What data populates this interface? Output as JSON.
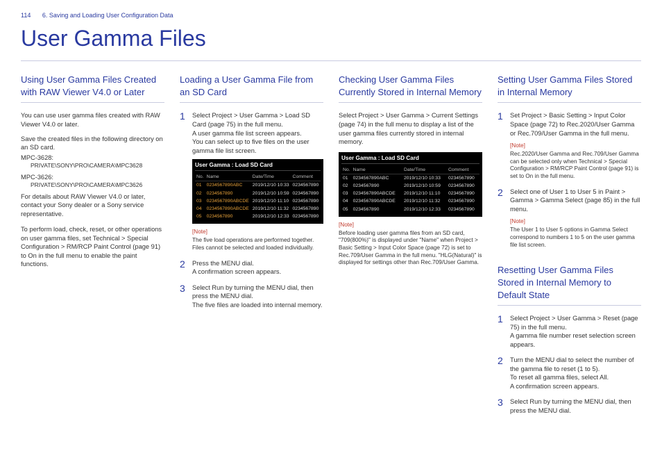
{
  "header": {
    "page_number": "114",
    "chapter": "6. Saving and Loading User Configuration Data",
    "title": "User Gamma Files"
  },
  "shot": {
    "title": "User Gamma : Load SD Card",
    "columns": [
      "No.",
      "Name",
      "Date/Time",
      "Comment"
    ],
    "rows": [
      [
        "01",
        "0234567890ABC",
        "2019/12/10 10:33",
        "0234567890"
      ],
      [
        "02",
        "0234567890",
        "2019/12/10 10:59",
        "0234567890"
      ],
      [
        "03",
        "0234567890ABCDE",
        "2019/12/10 11:10",
        "0234567890"
      ],
      [
        "04",
        "0234567890ABCDE",
        "2019/12/10 11:32",
        "0234567890"
      ],
      [
        "05",
        "0234567890",
        "2019/12/10 12:33",
        "0234567890"
      ]
    ]
  },
  "col1": {
    "h": "Using User Gamma Files Created with RAW Viewer V4.0 or Later",
    "p1": "You can use user gamma files created with RAW Viewer V4.0 or later.",
    "p2": "Save the created files in the following directory on an SD card.",
    "m1a": "MPC-3628:",
    "m1b": "PRIVATE\\SONY\\PRO\\CAMERA\\MPC3628",
    "m2a": "MPC-3626:",
    "m2b": "PRIVATE\\SONY\\PRO\\CAMERA\\MPC3626",
    "p3": "For details about RAW Viewer V4.0 or later, contact your Sony dealer or a Sony service representative.",
    "p4": "To perform load, check, reset, or other operations on user gamma files, set Technical > Special Configuration > RM/RCP Paint Control (page 91) to On in the full menu to enable the paint functions."
  },
  "col2": {
    "h": "Loading a User Gamma File from an SD Card",
    "s1a": "Select Project > User Gamma > Load SD Card (page 75) in the full menu.",
    "s1b": "A user gamma file list screen appears.",
    "s1c": "You can select up to five files on the user gamma file list screen.",
    "note_label": "[Note]",
    "note": "The five load operations are performed together. Files cannot be selected and loaded individually.",
    "s2a": "Press the MENU dial.",
    "s2b": "A confirmation screen appears.",
    "s3a": "Select Run by turning the MENU dial, then press the MENU dial.",
    "s3b": "The five files are loaded into internal memory."
  },
  "col3": {
    "h": "Checking User Gamma Files Currently Stored in Internal Memory",
    "p1": "Select Project > User Gamma > Current Settings (page 74) in the full menu to display a list of the user gamma files currently stored in internal memory.",
    "note_label": "[Note]",
    "note": "Before loading user gamma files from an SD card, \"709(800%)\" is displayed under \"Name\" when Project > Basic Setting > Input Color Space (page 72) is set to Rec.709/User Gamma in the full menu. \"HLG(Natural)\" is displayed for settings other than Rec.709/User Gamma."
  },
  "col4": {
    "hA": "Setting User Gamma Files Stored in Internal Memory",
    "a1": "Set Project > Basic Setting > Input Color Space (page 72) to Rec.2020/User Gamma or Rec.709/User Gamma in the full menu.",
    "a1_note_label": "[Note]",
    "a1_note": "Rec.2020/User Gamma and Rec.709/User Gamma can be selected only when Technical > Special Configuration > RM/RCP Paint Control (page 91) is set to On in the full menu.",
    "a2": "Select one of User 1 to User 5 in Paint > Gamma > Gamma Select (page 85) in the full menu.",
    "a2_note_label": "[Note]",
    "a2_note": "The User 1 to User 5 options in Gamma Select correspond to numbers 1 to 5 on the user gamma file list screen.",
    "hB": "Resetting User Gamma Files Stored in Internal Memory to Default State",
    "b1a": "Select Project > User Gamma > Reset (page 75) in the full menu.",
    "b1b": "A gamma file number reset selection screen appears.",
    "b2a": "Turn the MENU dial to select the number of the gamma file to reset (1 to 5).",
    "b2b": "To reset all gamma files, select All.",
    "b2c": "A confirmation screen appears.",
    "b3": "Select Run by turning the MENU dial, then press the MENU dial."
  }
}
